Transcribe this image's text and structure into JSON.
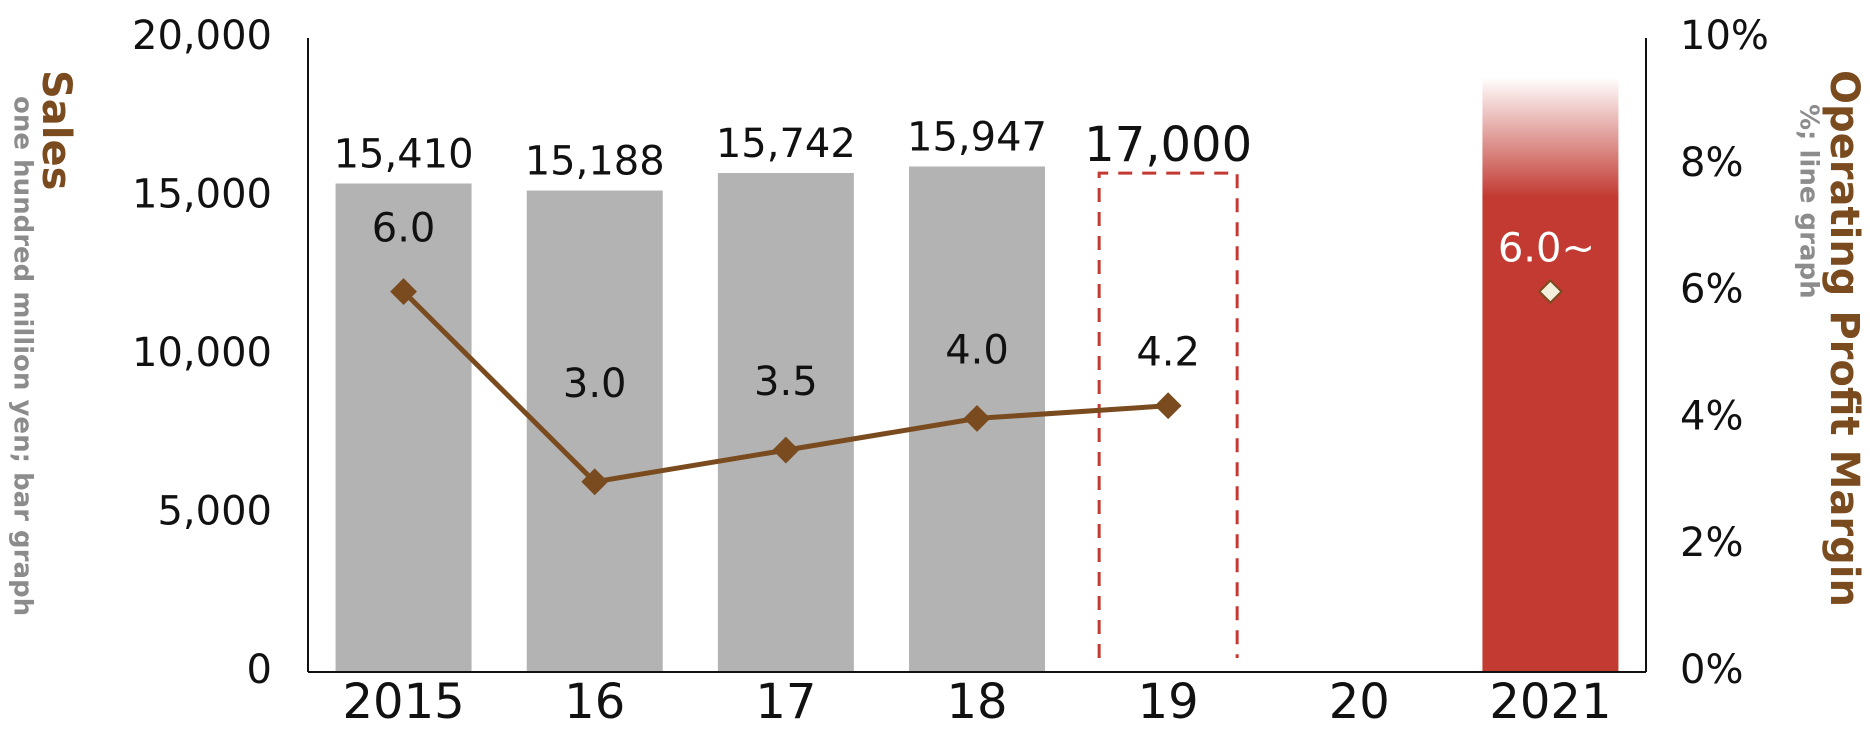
{
  "chart_data": {
    "type": "bar",
    "categories": [
      "2015",
      "16",
      "17",
      "18",
      "19",
      "20",
      "2021"
    ],
    "series": [
      {
        "name": "Sales",
        "kind": "bar",
        "axis": "left",
        "values": [
          15410,
          15188,
          15742,
          15947,
          null,
          null,
          17500
        ],
        "labels": [
          "15,410",
          "15,188",
          "15,742",
          "15,947",
          "",
          "",
          ""
        ],
        "colors": [
          "#b3b3b3",
          "#b3b3b3",
          "#b3b3b3",
          "#b3b3b3",
          null,
          null,
          "#c23a32"
        ],
        "forecast": {
          "category": "19",
          "value": 17000,
          "label": "17,000",
          "style": "dashed",
          "color": "#c23a32"
        }
      },
      {
        "name": "Operating Profit Margin",
        "kind": "line",
        "axis": "right",
        "values": [
          6.0,
          3.0,
          3.5,
          4.0,
          4.2,
          null,
          6.0
        ],
        "labels": [
          "6.0",
          "3.0",
          "3.5",
          "4.0",
          "4.2",
          "",
          "6.0~"
        ],
        "color": "#7a4b1e"
      }
    ],
    "left_axis": {
      "title": "Sales",
      "subtitle": "one hundred million yen; bar graph",
      "ylim": [
        0,
        20000
      ],
      "ticks": [
        0,
        5000,
        10000,
        15000,
        20000
      ],
      "tick_labels": [
        "0",
        "5,000",
        "10,000",
        "15,000",
        "20,000"
      ]
    },
    "right_axis": {
      "title": "Operating Profit Margin",
      "subtitle": "%; line graph",
      "ylim": [
        0,
        10
      ],
      "ticks": [
        0,
        2,
        4,
        6,
        8,
        10
      ],
      "tick_labels": [
        "0%",
        "2%",
        "4%",
        "6%",
        "8%",
        "10%"
      ]
    },
    "grid": false,
    "legend": "none"
  }
}
